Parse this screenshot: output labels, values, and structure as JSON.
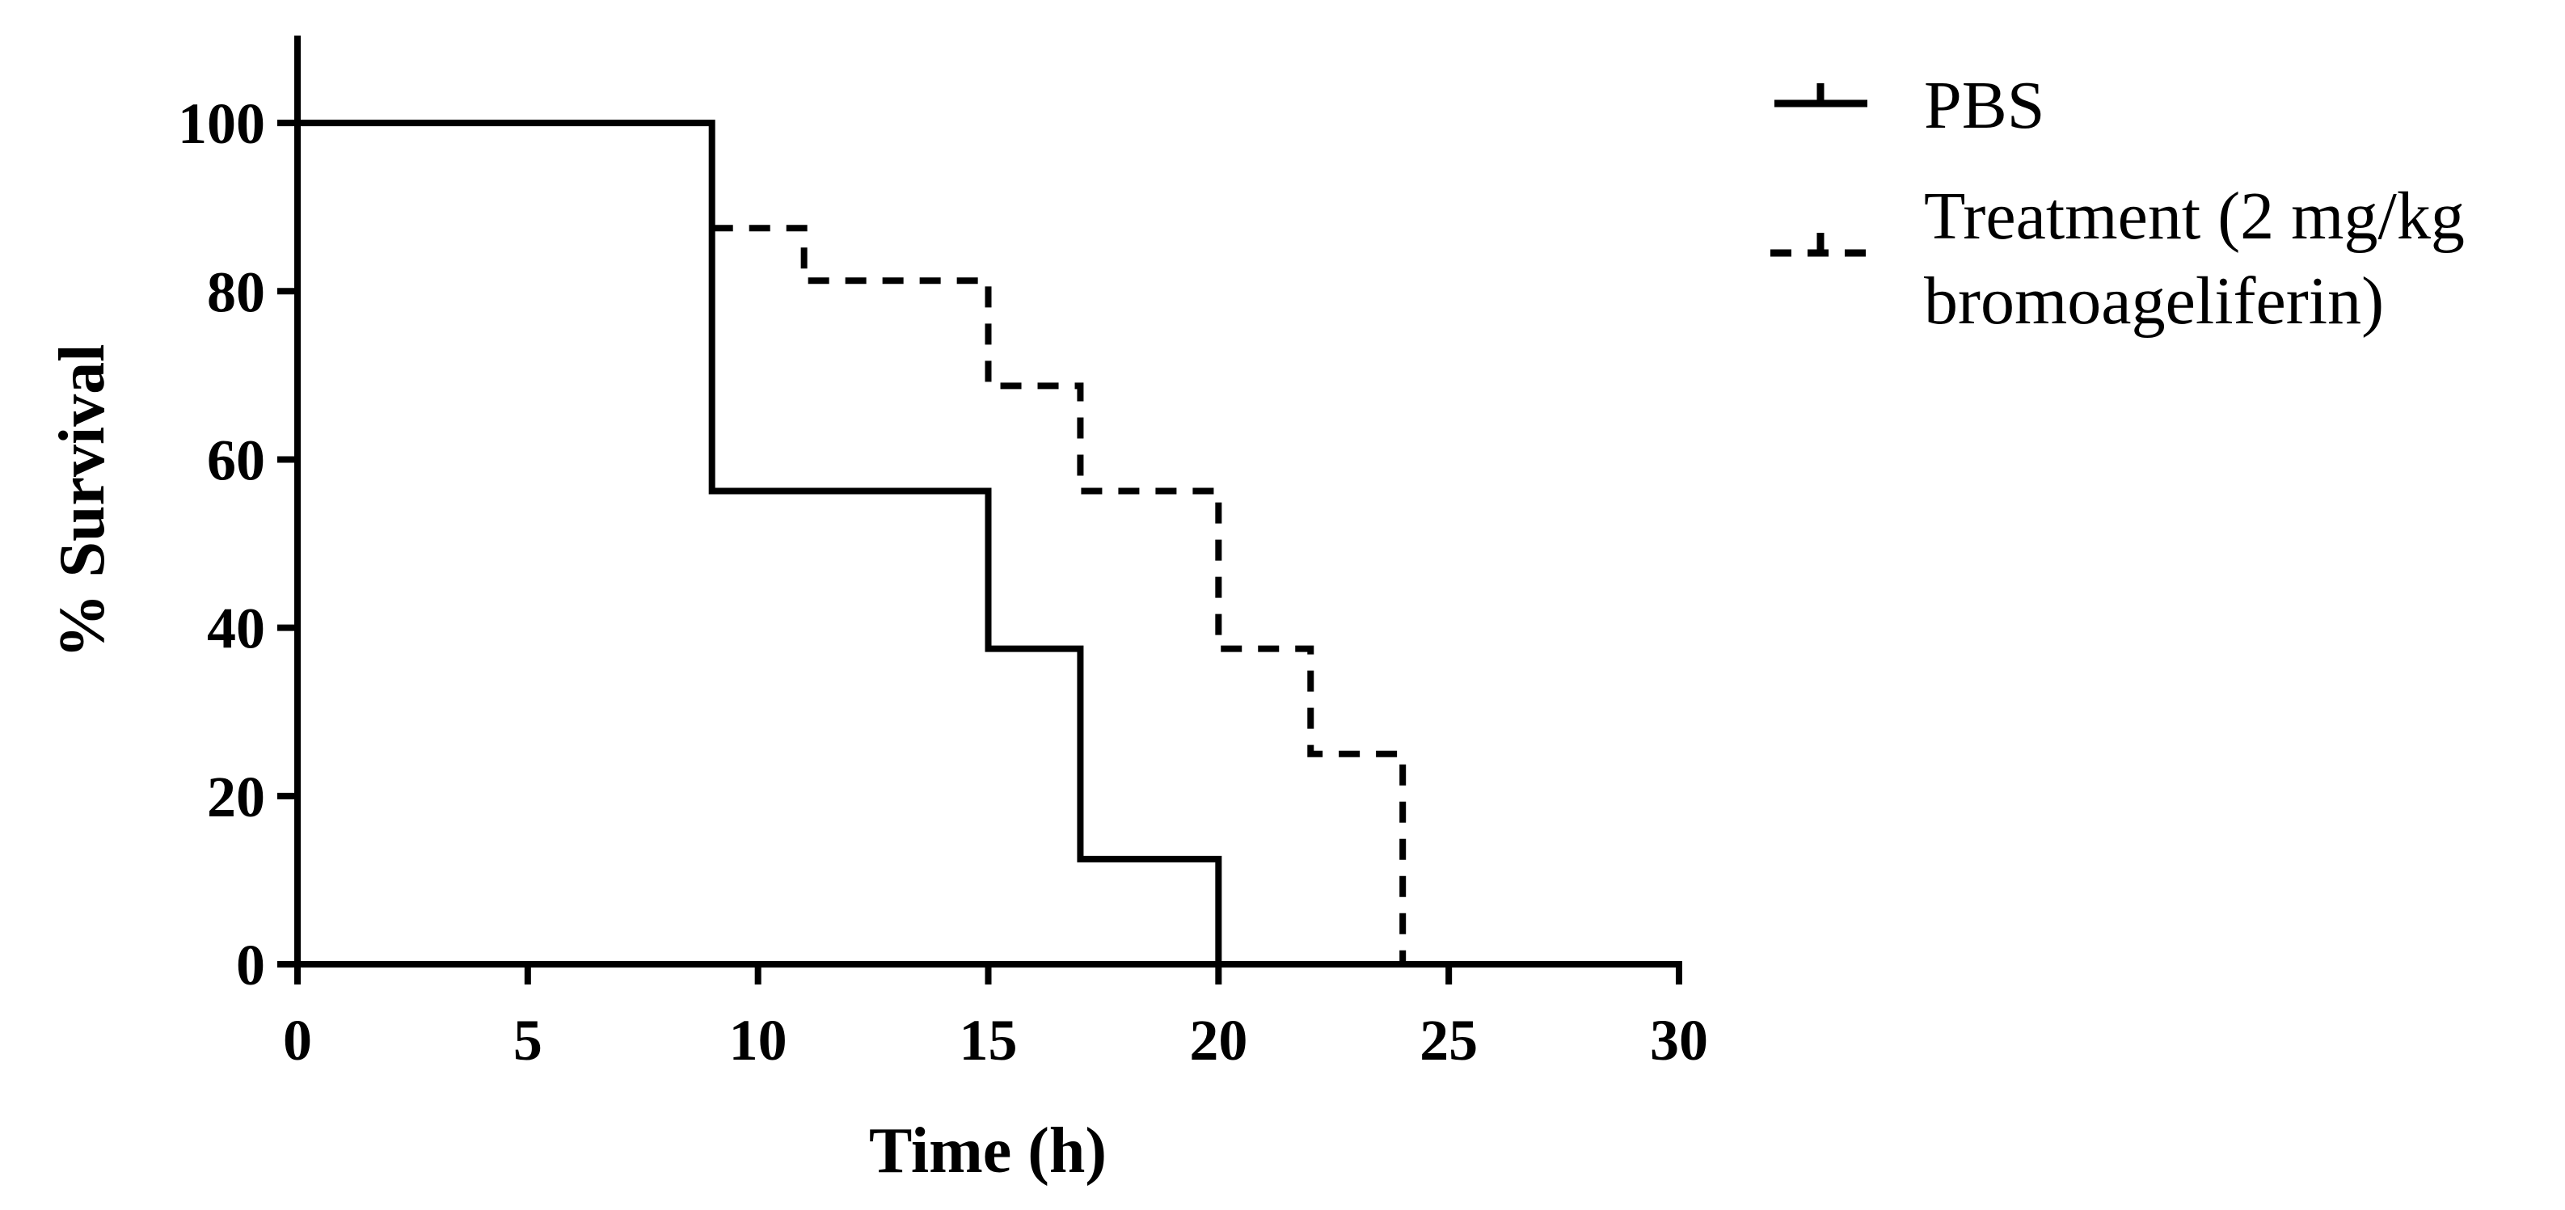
{
  "chart_data": {
    "type": "line",
    "subtype": "kaplan-meier survival curve",
    "xlabel": "Time (h)",
    "ylabel": "% Survival",
    "xlim": [
      0,
      30
    ],
    "ylim": [
      0,
      110
    ],
    "xticks": [
      0,
      5,
      10,
      15,
      20,
      25,
      30
    ],
    "yticks": [
      0,
      20,
      40,
      60,
      80,
      100
    ],
    "grid": false,
    "legend_position": "top-right, outside plot",
    "series": [
      {
        "name": "PBS",
        "style": "solid",
        "color": "#000000",
        "steps": [
          {
            "x": 0,
            "y": 100
          },
          {
            "x": 9,
            "y": 56.25
          },
          {
            "x": 15,
            "y": 37.5
          },
          {
            "x": 17,
            "y": 12.5
          },
          {
            "x": 20,
            "y": 0
          }
        ],
        "end_x": 30
      },
      {
        "name": "Treatment (2 mg/kg bromoageliferin)",
        "name_lines": [
          "Treatment (2 mg/kg",
          "bromoageliferin)"
        ],
        "style": "dashed",
        "color": "#000000",
        "steps": [
          {
            "x": 9,
            "y": 87.5
          },
          {
            "x": 11,
            "y": 81.25
          },
          {
            "x": 15,
            "y": 68.75
          },
          {
            "x": 17,
            "y": 56.25
          },
          {
            "x": 20,
            "y": 37.5
          },
          {
            "x": 22,
            "y": 25
          },
          {
            "x": 24,
            "y": 0
          }
        ],
        "end_x": 24
      }
    ]
  }
}
